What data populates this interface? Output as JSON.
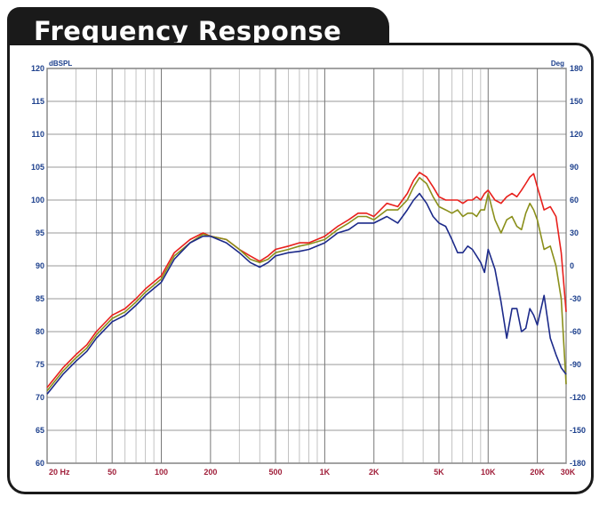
{
  "header": {
    "title": "Frequency Response"
  },
  "colors": {
    "spl_0": "#e8201c",
    "spl_30": "#8a8f1a",
    "spl_60": "#1c2a8a",
    "tick_left": "#1c3f8c",
    "tick_x": "#a01f3a",
    "title_bg": "#1a1a1a"
  },
  "chart_data": {
    "type": "line",
    "title": "Frequency Response",
    "xlabel": "",
    "ylabel": "",
    "x_scale": "log",
    "xlim": [
      20,
      30000
    ],
    "ylim": [
      60,
      120
    ],
    "y2lim": [
      -180,
      180
    ],
    "y_unit": "dBSPL",
    "y2_unit": "Deg",
    "grid": true,
    "y_ticks": [
      120,
      115,
      110,
      105,
      100,
      95,
      90,
      85,
      80,
      75,
      70,
      65,
      60
    ],
    "y2_ticks": [
      "180",
      "150",
      "120",
      "90",
      "60",
      "30",
      "0",
      "-30",
      "-60",
      "-90",
      "-120",
      "-150",
      "-180"
    ],
    "x_ticks": [
      {
        "v": 20,
        "label": "20 Hz"
      },
      {
        "v": 50,
        "label": "50"
      },
      {
        "v": 100,
        "label": "100"
      },
      {
        "v": 200,
        "label": "200"
      },
      {
        "v": 500,
        "label": "500"
      },
      {
        "v": 1000,
        "label": "1K"
      },
      {
        "v": 2000,
        "label": "2K"
      },
      {
        "v": 5000,
        "label": "5K"
      },
      {
        "v": 10000,
        "label": "10K"
      },
      {
        "v": 20000,
        "label": "20K"
      },
      {
        "v": 30000,
        "label": "30K"
      }
    ],
    "series": [
      {
        "color": "#e8201c",
        "x": [
          20,
          25,
          30,
          35,
          40,
          50,
          60,
          70,
          80,
          100,
          120,
          150,
          180,
          200,
          250,
          300,
          350,
          400,
          450,
          500,
          600,
          700,
          800,
          1000,
          1200,
          1400,
          1600,
          1800,
          2000,
          2400,
          2800,
          3200,
          3500,
          3800,
          4200,
          4600,
          5000,
          5500,
          6000,
          6500,
          7000,
          7500,
          8000,
          8500,
          9000,
          9500,
          10000,
          11000,
          12000,
          13000,
          14000,
          15000,
          16000,
          17000,
          18000,
          19000,
          20000,
          22000,
          24000,
          26000,
          28000,
          30000
        ],
        "y": [
          71.5,
          74.5,
          76.5,
          78,
          80,
          82.5,
          83.5,
          85,
          86.5,
          88.5,
          92,
          94,
          95,
          94.5,
          94,
          92.5,
          91.5,
          90.7,
          91.5,
          92.5,
          93,
          93.5,
          93.5,
          94.5,
          96,
          97,
          98,
          98,
          97.5,
          99.5,
          99,
          101,
          103,
          104.2,
          103.5,
          102,
          100.5,
          100,
          100,
          100,
          99.5,
          100,
          100,
          100.5,
          100,
          101,
          101.5,
          100,
          99.5,
          100.5,
          101,
          100.5,
          101.5,
          102.5,
          103.5,
          104,
          102,
          98.5,
          99,
          97.5,
          92,
          83
        ]
      },
      {
        "color": "#8a8f1a",
        "x": [
          20,
          25,
          30,
          35,
          40,
          50,
          60,
          70,
          80,
          100,
          120,
          150,
          180,
          200,
          250,
          300,
          350,
          400,
          450,
          500,
          600,
          700,
          800,
          1000,
          1200,
          1400,
          1600,
          1800,
          2000,
          2400,
          2800,
          3200,
          3500,
          3800,
          4200,
          4600,
          5000,
          5500,
          6000,
          6500,
          7000,
          7500,
          8000,
          8500,
          9000,
          9500,
          10000,
          11000,
          12000,
          13000,
          14000,
          15000,
          16000,
          17000,
          18000,
          19000,
          20000,
          22000,
          24000,
          26000,
          28000,
          30000
        ],
        "y": [
          71,
          74,
          76,
          77.5,
          79.5,
          82,
          83,
          84.5,
          86,
          88,
          91.5,
          93.5,
          94.8,
          94.5,
          94,
          92.5,
          91,
          90.5,
          91,
          92,
          92.5,
          93,
          93.3,
          94,
          95.5,
          96.5,
          97.5,
          97.5,
          97,
          98.5,
          98.5,
          100,
          102,
          103.4,
          102.5,
          100.5,
          99,
          98.5,
          98,
          98.5,
          97.5,
          98,
          98,
          97.5,
          98.5,
          98.5,
          101,
          97,
          95,
          97,
          97.5,
          96,
          95.5,
          98,
          99.5,
          98.5,
          97,
          92.5,
          93,
          90,
          85,
          72
        ]
      },
      {
        "color": "#1c2a8a",
        "x": [
          20,
          25,
          30,
          35,
          40,
          50,
          60,
          70,
          80,
          100,
          120,
          150,
          180,
          200,
          250,
          300,
          350,
          400,
          450,
          500,
          600,
          700,
          800,
          1000,
          1200,
          1400,
          1600,
          1800,
          2000,
          2400,
          2800,
          3200,
          3500,
          3800,
          4200,
          4600,
          5000,
          5500,
          6000,
          6500,
          7000,
          7500,
          8000,
          8500,
          9000,
          9500,
          10000,
          11000,
          12000,
          13000,
          14000,
          15000,
          16000,
          17000,
          18000,
          19000,
          20000,
          22000,
          24000,
          26000,
          28000,
          30000
        ],
        "y": [
          70.5,
          73.5,
          75.5,
          77,
          79,
          81.5,
          82.5,
          84,
          85.5,
          87.5,
          91,
          93.5,
          94.5,
          94.5,
          93.5,
          92,
          90.5,
          89.8,
          90.5,
          91.5,
          92,
          92.2,
          92.5,
          93.5,
          95,
          95.5,
          96.5,
          96.5,
          96.5,
          97.5,
          96.5,
          98.5,
          100,
          101,
          99.5,
          97.5,
          96.5,
          96,
          94,
          92,
          92,
          93,
          92.5,
          91.5,
          90.5,
          89,
          92.5,
          89.5,
          84.5,
          79,
          83.5,
          83.5,
          80,
          80.5,
          83.5,
          82.5,
          81,
          85.5,
          79,
          76.5,
          74.5,
          73.5
        ]
      }
    ]
  }
}
